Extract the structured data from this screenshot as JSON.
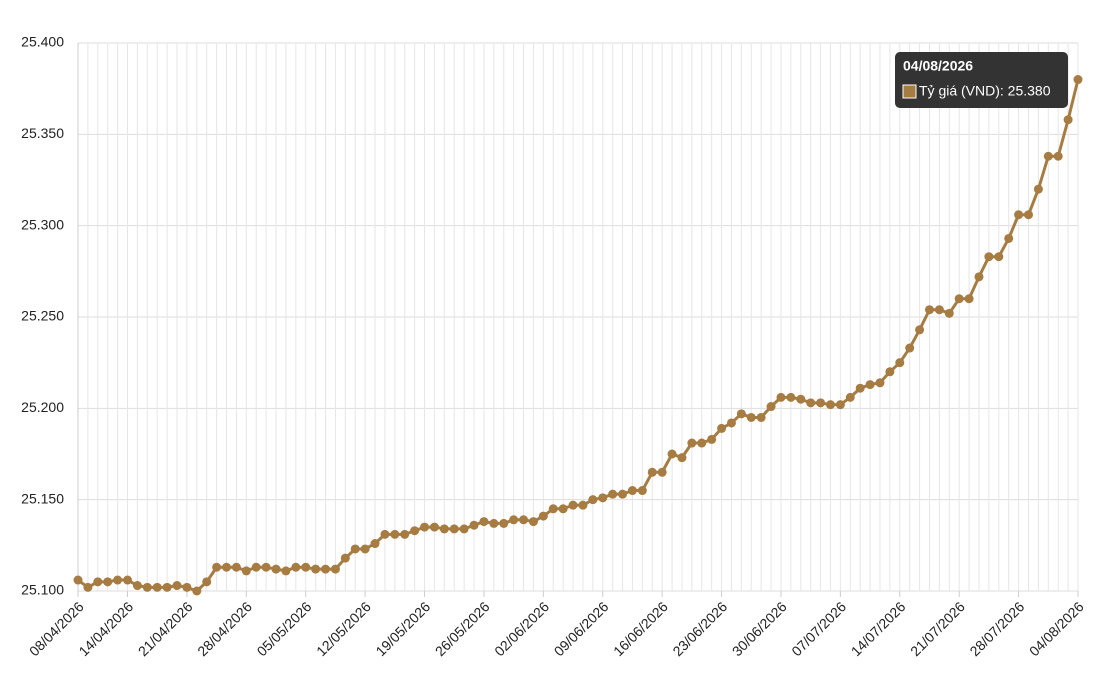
{
  "chart_data": {
    "type": "line",
    "categories": [
      "08/04/2026",
      null,
      null,
      null,
      null,
      "14/04/2026",
      null,
      null,
      null,
      null,
      null,
      "21/04/2026",
      null,
      null,
      null,
      null,
      null,
      "28/04/2026",
      null,
      null,
      null,
      null,
      null,
      "05/05/2026",
      null,
      null,
      null,
      null,
      null,
      "12/05/2026",
      null,
      null,
      null,
      null,
      null,
      "19/05/2026",
      null,
      null,
      null,
      null,
      null,
      "26/05/2026",
      null,
      null,
      null,
      null,
      null,
      "02/06/2026",
      null,
      null,
      null,
      null,
      null,
      "09/06/2026",
      null,
      null,
      null,
      null,
      null,
      "16/06/2026",
      null,
      null,
      null,
      null,
      null,
      "23/06/2026",
      null,
      null,
      null,
      null,
      null,
      "30/06/2026",
      null,
      null,
      null,
      null,
      null,
      "07/07/2026",
      null,
      null,
      null,
      null,
      null,
      "14/07/2026",
      null,
      null,
      null,
      null,
      null,
      "21/07/2026",
      null,
      null,
      null,
      null,
      null,
      "28/07/2026",
      null,
      null,
      null,
      null,
      null,
      "04/08/2026"
    ],
    "series": [
      {
        "name": "Tỷ giá (VND)",
        "color": "#a67c43",
        "values": [
          25106,
          25102,
          25105,
          25105,
          25106,
          25106,
          25103,
          25102,
          25102,
          25102,
          25103,
          25102,
          25100,
          25105,
          25113,
          25113,
          25113,
          25111,
          25113,
          25113,
          25112,
          25111,
          25113,
          25113,
          25112,
          25112,
          25112,
          25118,
          25123,
          25123,
          25126,
          25131,
          25131,
          25131,
          25133,
          25135,
          25135,
          25134,
          25134,
          25134,
          25136,
          25138,
          25137,
          25137,
          25139,
          25139,
          25138,
          25141,
          25145,
          25145,
          25147,
          25147,
          25150,
          25151,
          25153,
          25153,
          25155,
          25155,
          25165,
          25165,
          25175,
          25173,
          25181,
          25181,
          25183,
          25189,
          25192,
          25197,
          25195,
          25195,
          25201,
          25206,
          25206,
          25205,
          25203,
          25203,
          25202,
          25202,
          25206,
          25211,
          25213,
          25214,
          25220,
          25225,
          25233,
          25243,
          25254,
          25254,
          25252,
          25260,
          25260,
          25272,
          25283,
          25283,
          25293,
          25306,
          25306,
          25320,
          25338,
          25338,
          25358,
          25380
        ]
      }
    ],
    "ylim": [
      25100,
      25400
    ],
    "yticks": [
      {
        "value": 25100,
        "label": "25.100"
      },
      {
        "value": 25150,
        "label": "25.150"
      },
      {
        "value": 25200,
        "label": "25.200"
      },
      {
        "value": 25250,
        "label": "25.250"
      },
      {
        "value": 25300,
        "label": "25.300"
      },
      {
        "value": 25350,
        "label": "25.350"
      },
      {
        "value": 25400,
        "label": "25.400"
      }
    ],
    "grid": true,
    "tooltip": {
      "title": "04/08/2026",
      "text": "Tỷ giá (VND): 25.380"
    }
  }
}
